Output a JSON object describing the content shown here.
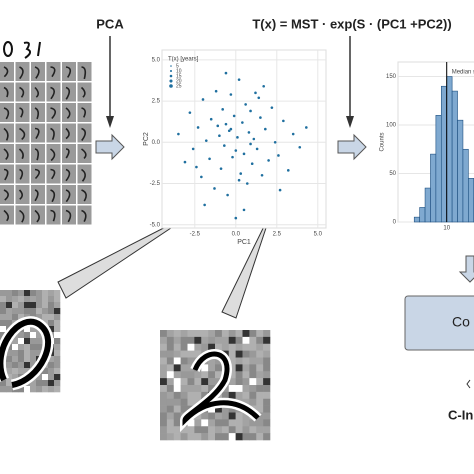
{
  "labels": {
    "pca": "PCA",
    "formula": "T(x) = MST · exp(S · (PC1 +PC2))",
    "box": "Co",
    "bottom": "C-In"
  },
  "chart_data": [
    {
      "type": "scatter",
      "xlabel": "PC1",
      "ylabel": "PC2",
      "legend_title": "T(x) [years]",
      "legend_items": [
        5,
        10,
        15,
        20,
        25
      ],
      "color": "#1f6f9f",
      "xlim": [
        -4.5,
        5.5
      ],
      "ylim": [
        -5.2,
        5.6
      ],
      "xticks": [
        -2.5,
        {
          "value": 0,
          "label": "0.0"
        },
        2.5,
        {
          "value": 5,
          "label": "5.0"
        }
      ],
      "yticks": [
        {
          "value": 5,
          "label": "5.0"
        },
        2.5,
        {
          "value": 0,
          "label": "0.0"
        },
        -2.5,
        {
          "value": -5,
          "label": "-5.0"
        }
      ],
      "grid": true,
      "series": [
        {
          "name": "samples",
          "color": "#1f6f9f",
          "x": [
            -3.5,
            -3.1,
            -2.8,
            -2.6,
            -2.3,
            -2.1,
            -2.0,
            -1.8,
            -1.6,
            -1.5,
            -1.3,
            -1.2,
            -1.0,
            -0.9,
            -0.8,
            -0.7,
            -0.6,
            -0.5,
            -0.4,
            -0.3,
            -0.2,
            -0.1,
            0.0,
            0.1,
            0.2,
            0.3,
            0.4,
            0.5,
            0.6,
            0.7,
            0.8,
            0.9,
            1.0,
            1.1,
            1.2,
            1.3,
            1.5,
            1.6,
            1.8,
            2.0,
            2.2,
            2.4,
            2.6,
            2.9,
            3.2,
            3.5,
            3.9,
            4.3,
            -1.9,
            -0.6,
            0.5,
            1.4,
            -1.1,
            0.2,
            0.9,
            -0.3,
            1.7,
            -2.4,
            2.7,
            0.0
          ],
          "values": [
            0.5,
            -1.2,
            1.8,
            -0.4,
            0.9,
            -2.1,
            2.6,
            0.1,
            -1.0,
            1.4,
            -2.8,
            3.1,
            0.4,
            -1.6,
            2.0,
            -0.2,
            1.1,
            -3.2,
            0.7,
            2.9,
            -0.9,
            1.6,
            -0.5,
            0.3,
            3.8,
            -1.9,
            1.2,
            -0.7,
            2.3,
            -2.5,
            0.6,
            1.9,
            -1.3,
            0.2,
            3.0,
            -0.4,
            1.5,
            -2.0,
            0.8,
            -1.1,
            2.1,
            0.0,
            -0.8,
            1.3,
            -1.7,
            0.5,
            -0.3,
            0.9,
            -3.8,
            4.2,
            -4.1,
            2.7,
            1.0,
            -2.3,
            -0.1,
            0.8,
            3.4,
            -1.5,
            -2.9,
            -4.6
          ]
        }
      ]
    },
    {
      "type": "histogram",
      "ylabel": "Counts",
      "annotation": "Median s",
      "median": 10,
      "color": "#7fa9d0",
      "xlim": [
        1,
        18
      ],
      "ylim": [
        0,
        165
      ],
      "xticks": [
        10
      ],
      "yticks": [
        0,
        50,
        100,
        150
      ],
      "grid": true,
      "bins": [
        4,
        5,
        6,
        7,
        8,
        9,
        10,
        11,
        12,
        13,
        14,
        15,
        16,
        17,
        18
      ],
      "counts": [
        5,
        15,
        35,
        70,
        110,
        140,
        150,
        135,
        105,
        75,
        45,
        25,
        12,
        5
      ]
    }
  ]
}
